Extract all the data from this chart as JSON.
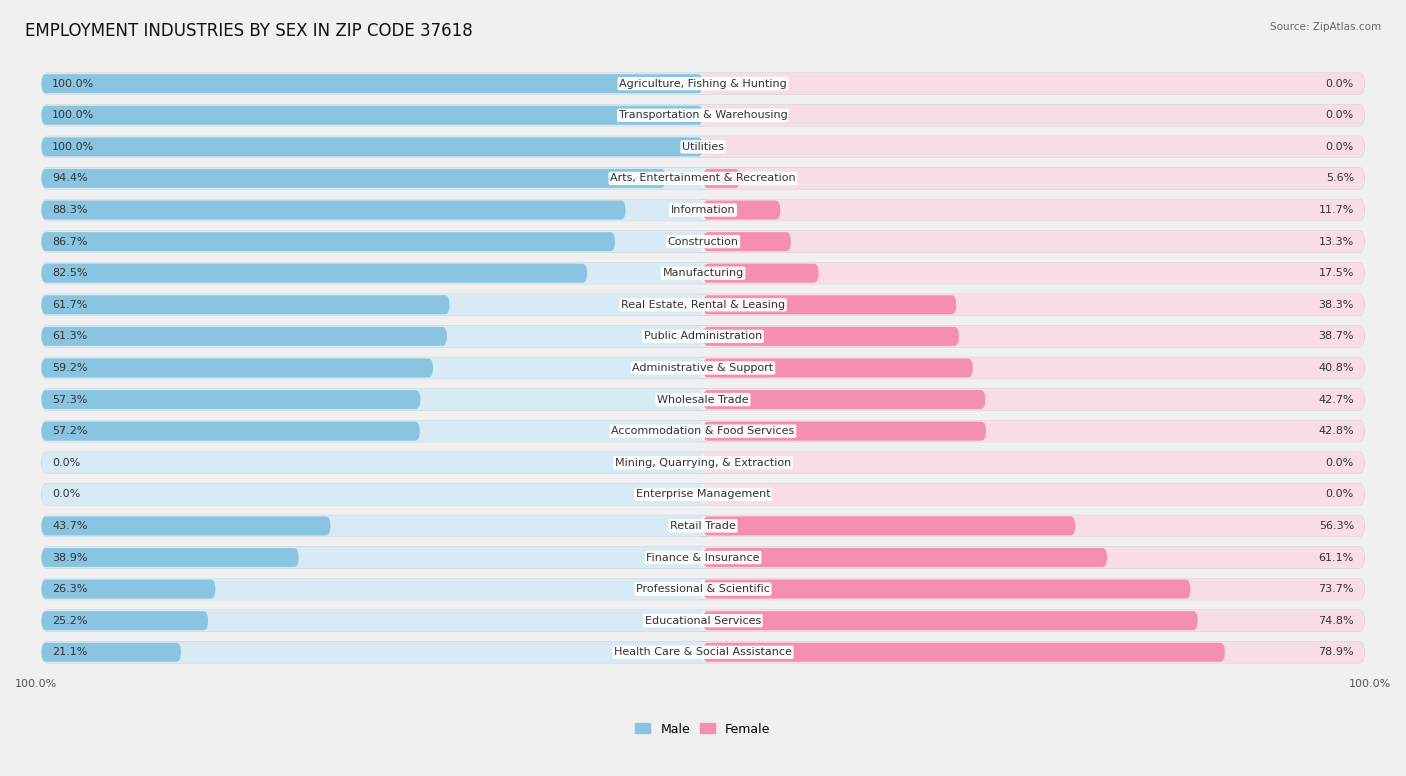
{
  "title": "EMPLOYMENT INDUSTRIES BY SEX IN ZIP CODE 37618",
  "source": "Source: ZipAtlas.com",
  "categories": [
    "Agriculture, Fishing & Hunting",
    "Transportation & Warehousing",
    "Utilities",
    "Arts, Entertainment & Recreation",
    "Information",
    "Construction",
    "Manufacturing",
    "Real Estate, Rental & Leasing",
    "Public Administration",
    "Administrative & Support",
    "Wholesale Trade",
    "Accommodation & Food Services",
    "Mining, Quarrying, & Extraction",
    "Enterprise Management",
    "Retail Trade",
    "Finance & Insurance",
    "Professional & Scientific",
    "Educational Services",
    "Health Care & Social Assistance"
  ],
  "male_pct": [
    100.0,
    100.0,
    100.0,
    94.4,
    88.3,
    86.7,
    82.5,
    61.7,
    61.3,
    59.2,
    57.3,
    57.2,
    0.0,
    0.0,
    43.7,
    38.9,
    26.3,
    25.2,
    21.1
  ],
  "female_pct": [
    0.0,
    0.0,
    0.0,
    5.6,
    11.7,
    13.3,
    17.5,
    38.3,
    38.7,
    40.8,
    42.7,
    42.8,
    0.0,
    0.0,
    56.3,
    61.1,
    73.7,
    74.8,
    78.9
  ],
  "male_color": "#89c4e1",
  "female_color": "#f48fb1",
  "background_color": "#f0f0f0",
  "row_bg_color": "#e8e8e8",
  "bar_bg_color": "#dce8f0",
  "bar_bg_female_color": "#f9d0df",
  "white_color": "#ffffff",
  "title_fontsize": 12,
  "label_fontsize": 8,
  "pct_fontsize": 8
}
